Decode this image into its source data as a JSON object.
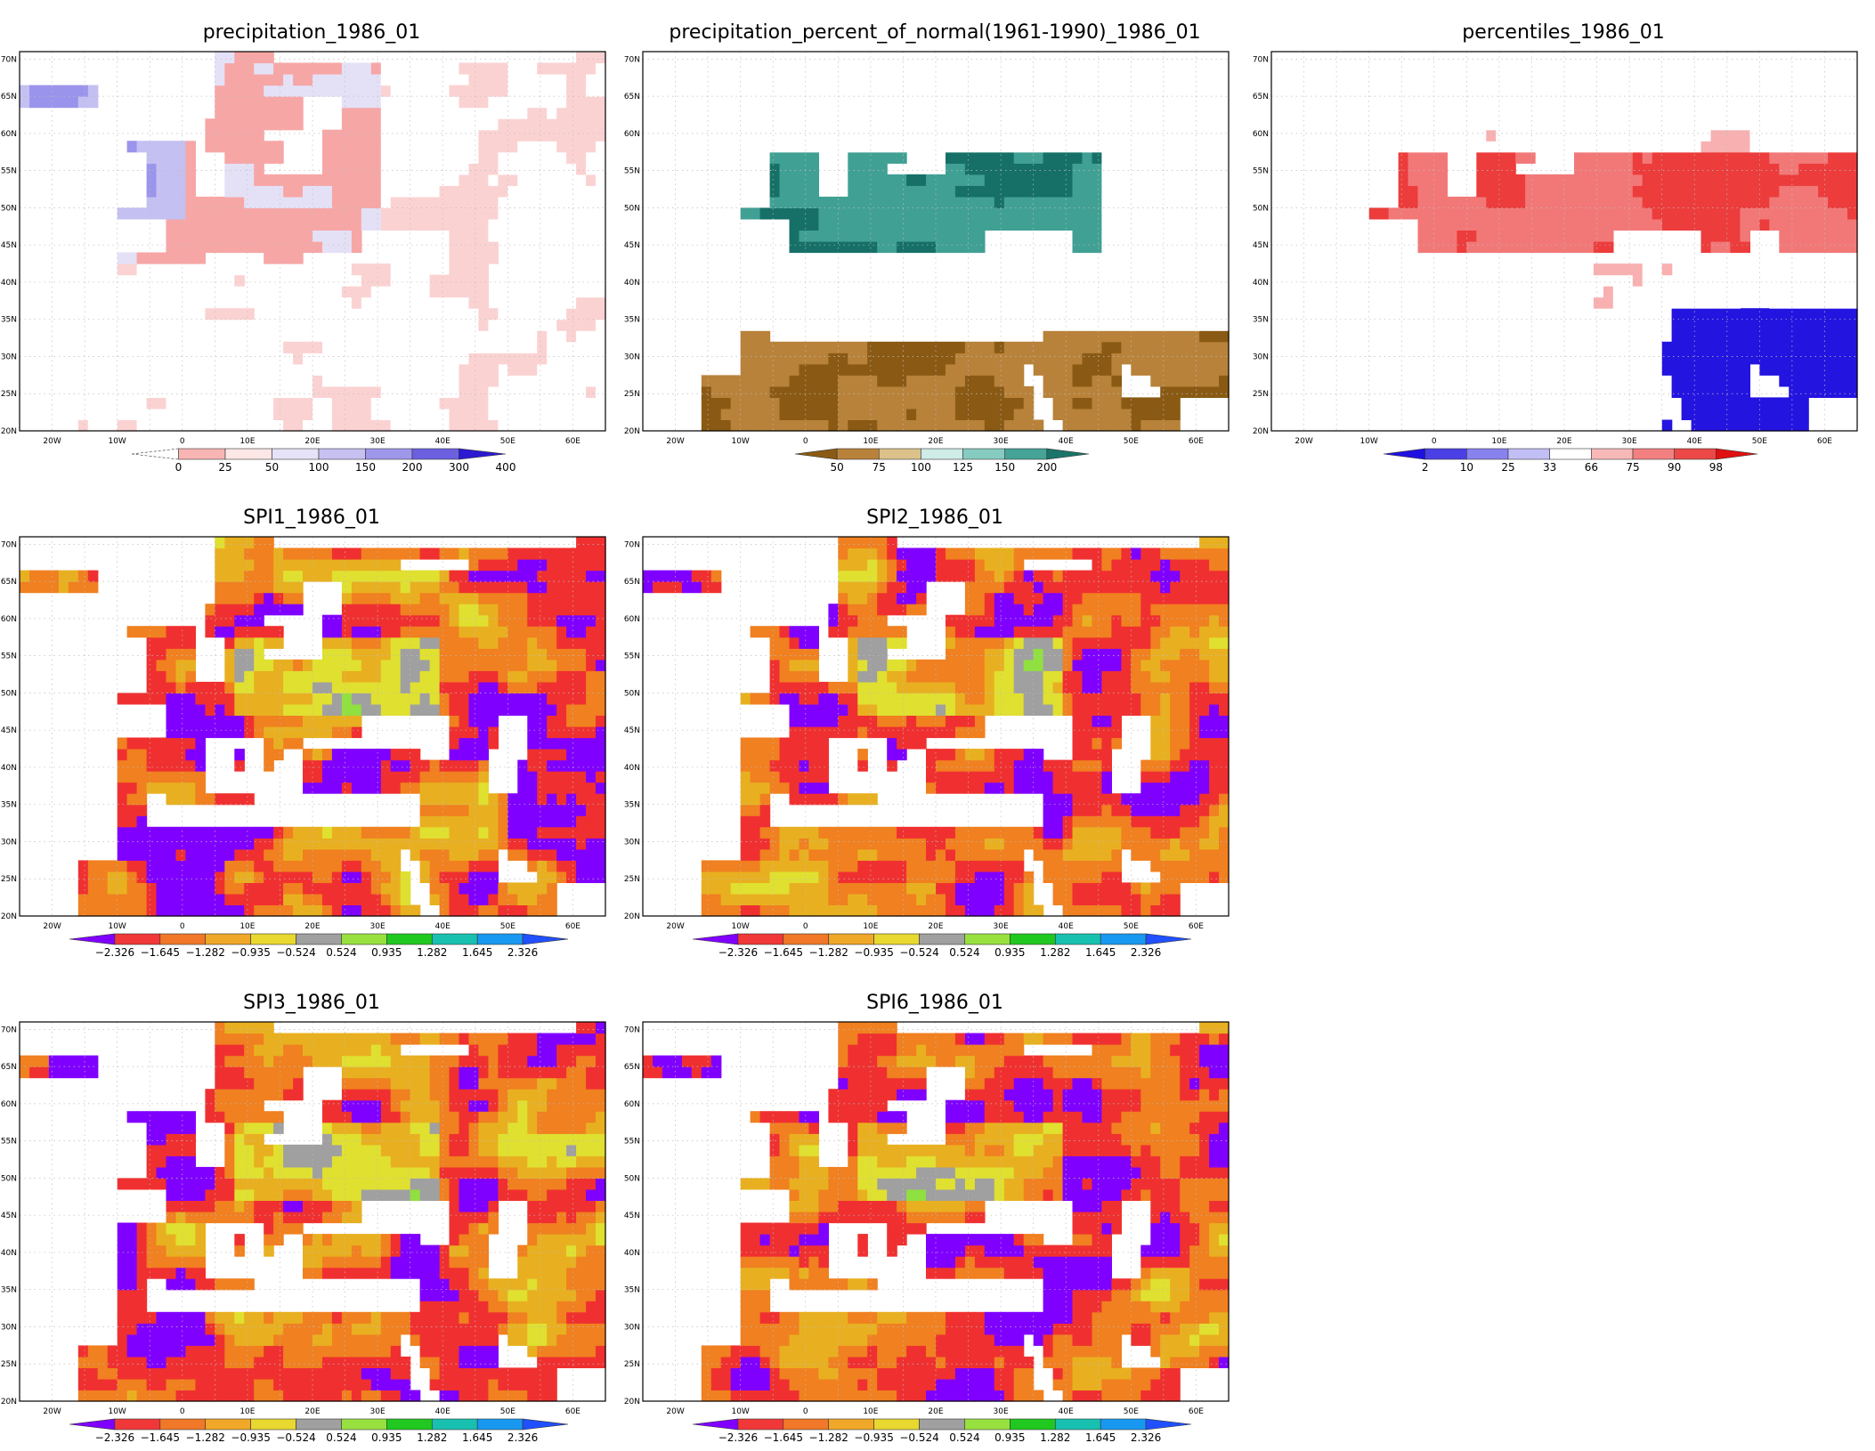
{
  "lat_labels": [
    "70N",
    "65N",
    "60N",
    "55N",
    "50N",
    "45N",
    "40N",
    "35N",
    "30N",
    "25N",
    "20N"
  ],
  "lon_labels": [
    "20W",
    "10W",
    "0",
    "10E",
    "20E",
    "30E",
    "40E",
    "50E",
    "60E"
  ],
  "panels": [
    {
      "id": "precip",
      "title": "precipitation_1986_01",
      "variable": "precipitation",
      "palette": [
        "#ffffff",
        "#fbd2d2",
        "#f7a6a6",
        "#e4e1f7",
        "#c4c0f2",
        "#9b94ec",
        "#6a5ee4",
        "#3a27dc"
      ],
      "colorbar": {
        "labels": [
          "0",
          "25",
          "50",
          "100",
          "150",
          "200",
          "300",
          "400"
        ],
        "colors": [
          "#fbc8c8",
          "#f9b4b4",
          "#fde6e6",
          "#e6e3f8",
          "#c7c1f2",
          "#9f97ea",
          "#6c60e0",
          "#2b1ad2"
        ],
        "dashed_left": true
      }
    },
    {
      "id": "pon",
      "title": "precipitation_percent_of_normal(1961-1990)_1986_01",
      "variable": "percent_of_normal",
      "palette": [
        "#8a5a14",
        "#b8823a",
        "#dcc28a",
        "#ffffff",
        "#c6e8e2",
        "#80c8bc",
        "#40a094",
        "#167068"
      ],
      "colorbar": {
        "labels": [
          "50",
          "75",
          "100",
          "125",
          "150",
          "200"
        ],
        "colors": [
          "#8a5a14",
          "#b8823a",
          "#dcc28a",
          "#cfece7",
          "#86cbc0",
          "#45a398",
          "#1a746a"
        ],
        "dashed_left": false
      }
    },
    {
      "id": "pct",
      "title": "percentiles_1986_01",
      "variable": "percentiles",
      "palette": [
        "#2414e0",
        "#5a50e8",
        "#9a94f0",
        "#ffffff",
        "#f8b0b0",
        "#f27878",
        "#ec3c3c",
        "#e40a0a"
      ],
      "colorbar": {
        "labels": [
          "2",
          "10",
          "25",
          "33",
          "66",
          "75",
          "90",
          "98"
        ],
        "colors": [
          "#2011e0",
          "#4a40e6",
          "#8882ee",
          "#c2bef6",
          "#ffffff",
          "#f9b8b8",
          "#f28080",
          "#ec4848",
          "#e01010"
        ],
        "dashed_left": false
      }
    },
    {
      "id": "spi1",
      "title": "SPI1_1986_01",
      "variable": "spi",
      "palette": [
        "#8000ff",
        "#f03030",
        "#f08020",
        "#e8b020",
        "#e0e030",
        "#a0a0a0",
        "#90e040",
        "#20d020",
        "#10c0b0",
        "#1090f0",
        "#2050ff"
      ],
      "colorbar": {
        "labels": [
          "-2.326",
          "-1.645",
          "-1.282",
          "-0.935",
          "-0.524",
          "0.524",
          "0.935",
          "1.282",
          "1.645",
          "2.326"
        ],
        "colors": [
          "#8000ff",
          "#f03838",
          "#f07828",
          "#f0a828",
          "#e8d830",
          "#a0a0a0",
          "#98e040",
          "#20c820",
          "#18c0b0",
          "#1898f0",
          "#2050ff"
        ],
        "dashed_left": false
      }
    },
    {
      "id": "spi2",
      "title": "SPI2_1986_01",
      "variable": "spi",
      "palette": [
        "#8000ff",
        "#f03030",
        "#f08020",
        "#e8b020",
        "#e0e030",
        "#a0a0a0",
        "#90e040",
        "#20d020",
        "#10c0b0",
        "#1090f0",
        "#2050ff"
      ],
      "colorbar": {
        "labels": [
          "-2.326",
          "-1.645",
          "-1.282",
          "-0.935",
          "-0.524",
          "0.524",
          "0.935",
          "1.282",
          "1.645",
          "2.326"
        ],
        "colors": [
          "#8000ff",
          "#f03838",
          "#f07828",
          "#f0a828",
          "#e8d830",
          "#a0a0a0",
          "#98e040",
          "#20c820",
          "#18c0b0",
          "#1898f0",
          "#2050ff"
        ],
        "dashed_left": false
      }
    },
    {
      "id": "spi3",
      "title": "SPI3_1986_01",
      "variable": "spi",
      "palette": [
        "#8000ff",
        "#f03030",
        "#f08020",
        "#e8b020",
        "#e0e030",
        "#a0a0a0",
        "#90e040",
        "#20d020",
        "#10c0b0",
        "#1090f0",
        "#2050ff"
      ],
      "colorbar": {
        "labels": [
          "-2.326",
          "-1.645",
          "-1.282",
          "-0.935",
          "-0.524",
          "0.524",
          "0.935",
          "1.282",
          "1.645",
          "2.326"
        ],
        "colors": [
          "#8000ff",
          "#f03838",
          "#f07828",
          "#f0a828",
          "#e8d830",
          "#a0a0a0",
          "#98e040",
          "#20c820",
          "#18c0b0",
          "#1898f0",
          "#2050ff"
        ],
        "dashed_left": false
      }
    },
    {
      "id": "spi6",
      "title": "SPI6_1986_01",
      "variable": "spi",
      "palette": [
        "#8000ff",
        "#f03030",
        "#f08020",
        "#e8b020",
        "#e0e030",
        "#a0a0a0",
        "#90e040",
        "#20d020",
        "#10c0b0",
        "#1090f0",
        "#2050ff"
      ],
      "colorbar": {
        "labels": [
          "-2.326",
          "-1.645",
          "-1.282",
          "-0.935",
          "-0.524",
          "0.524",
          "0.935",
          "1.282",
          "1.645",
          "2.326"
        ],
        "colors": [
          "#8000ff",
          "#f03838",
          "#f07828",
          "#f0a828",
          "#e8d830",
          "#a0a0a0",
          "#98e040",
          "#20c820",
          "#18c0b0",
          "#1898f0",
          "#2050ff"
        ],
        "dashed_left": false
      }
    }
  ]
}
